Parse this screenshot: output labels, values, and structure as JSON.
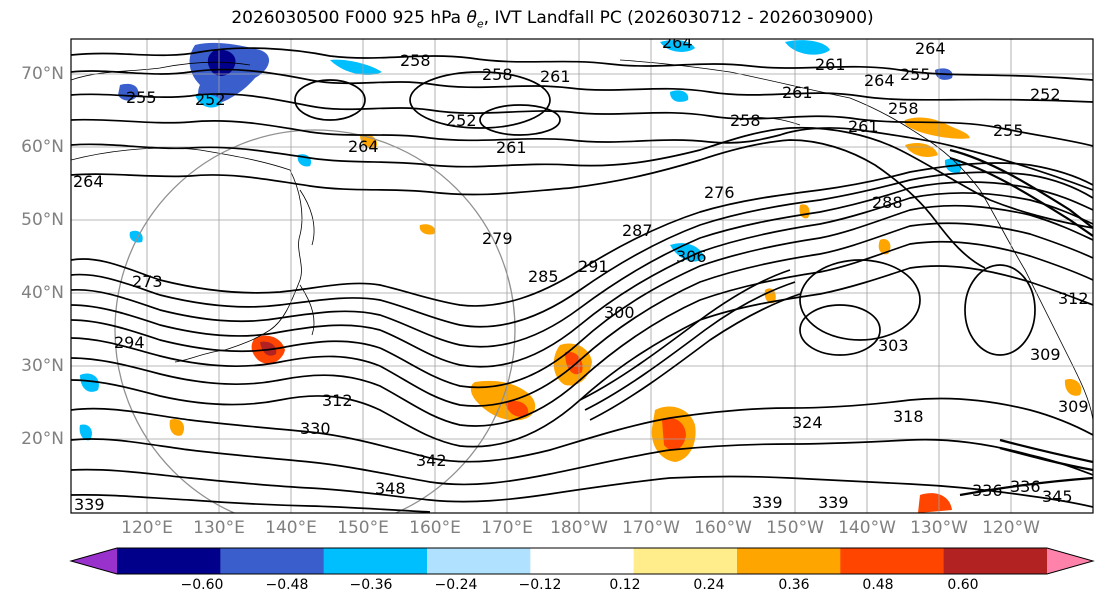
{
  "title_prefix": "2026030500 F000 925 hPa ",
  "title_symbol": "θ",
  "title_symbol_sub": "e",
  "title_suffix": ", IVT Landfall PC (2026030712 - 2026030900)",
  "lat_labels": [
    "70°N",
    "60°N",
    "50°N",
    "40°N",
    "30°N",
    "20°N"
  ],
  "lon_labels": [
    "120°E",
    "130°E",
    "140°E",
    "150°E",
    "160°E",
    "170°E",
    "180°W",
    "170°W",
    "160°W",
    "150°W",
    "140°W",
    "130°W",
    "120°W"
  ],
  "contour_labels": [
    "258",
    "255",
    "258",
    "261",
    "264",
    "264",
    "261",
    "264",
    "258",
    "261",
    "258",
    "252",
    "252",
    "255",
    "252",
    "255",
    "264",
    "261",
    "261",
    "264",
    "279",
    "285",
    "287",
    "291",
    "288",
    "306",
    "300",
    "276",
    "273",
    "294",
    "303",
    "312",
    "309",
    "324",
    "318",
    "309",
    "312",
    "330",
    "342",
    "348",
    "336",
    "339",
    "339",
    "345",
    "339",
    "336"
  ],
  "colorbar": {
    "ticks": [
      "−0.60",
      "−0.48",
      "−0.36",
      "−0.24",
      "−0.12",
      "0.12",
      "0.24",
      "0.36",
      "0.48",
      "0.60"
    ],
    "colors": [
      "#9932CC",
      "#00008B",
      "#3A5FCD",
      "#00BFFF",
      "#B0E2FF",
      "#FFFFFF",
      "#FFEC8B",
      "#FFA500",
      "#FF4500",
      "#B22222",
      "#FF82AB"
    ]
  }
}
